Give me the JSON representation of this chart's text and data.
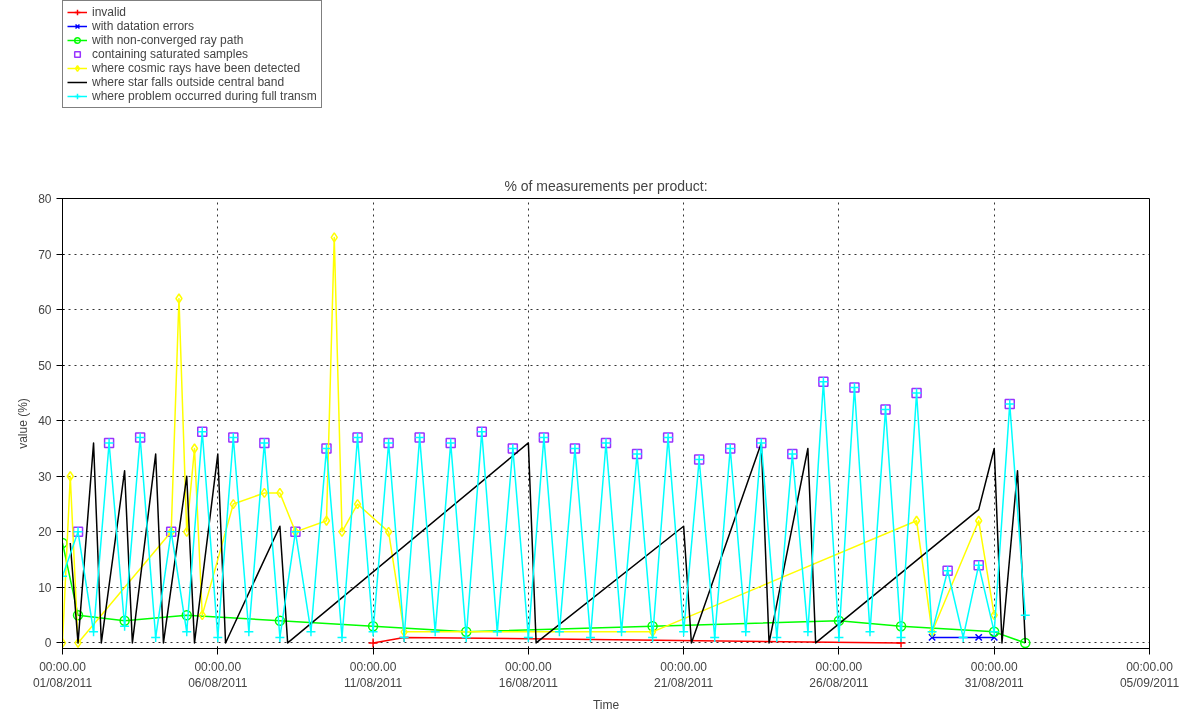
{
  "chart_data": {
    "type": "line",
    "title": "% of measurements per product:",
    "xlabel": "Time",
    "ylabel": "value (%)",
    "xlim": [
      "2011-08-01",
      "2011-09-05"
    ],
    "xticks": [
      {
        "value": "2011-08-01",
        "label": "00:00.00\n01/08/2011"
      },
      {
        "value": "2011-08-06",
        "label": "00:00.00\n06/08/2011"
      },
      {
        "value": "2011-08-11",
        "label": "00:00.00\n11/08/2011"
      },
      {
        "value": "2011-08-16",
        "label": "00:00.00\n16/08/2011"
      },
      {
        "value": "2011-08-21",
        "label": "00:00.00\n21/08/2011"
      },
      {
        "value": "2011-08-26",
        "label": "00:00.00\n26/08/2011"
      },
      {
        "value": "2011-08-31",
        "label": "00:00.00\n31/08/2011"
      },
      {
        "value": "2011-09-05",
        "label": "00:00.00\n05/09/2011"
      }
    ],
    "ylim": [
      -1,
      80
    ],
    "yticks": [
      0,
      10,
      20,
      30,
      40,
      50,
      60,
      70,
      80
    ],
    "grid": true,
    "legend": "top left",
    "line_style": "solid",
    "series": [
      {
        "name": "invalid",
        "color": "#ff0000",
        "marker": "cross",
        "x": [
          "2011-08-11T00:00",
          "2011-08-12T00:00",
          "2011-08-28T00:00"
        ],
        "values": [
          0,
          1,
          0
        ]
      },
      {
        "name": "with datation errors",
        "color": "#0000ff",
        "marker": "x",
        "x": [
          "2011-08-29T00:00",
          "2011-08-30T12:00",
          "2011-08-31T00:00"
        ],
        "values": [
          1,
          1,
          1
        ]
      },
      {
        "name": "with non-converged ray path",
        "color": "#00ff00",
        "marker": "circle",
        "x": [
          "2011-08-01T00:00",
          "2011-08-01T12:00",
          "2011-08-03T00:00",
          "2011-08-05T00:00",
          "2011-08-08T00:00",
          "2011-08-11T00:00",
          "2011-08-14T00:00",
          "2011-08-20T00:00",
          "2011-08-26T00:00",
          "2011-08-28T00:00",
          "2011-08-31T00:00",
          "2011-09-01T00:00"
        ],
        "values": [
          18,
          5,
          4,
          5,
          4,
          3,
          2,
          3,
          4,
          3,
          2,
          0
        ]
      },
      {
        "name": "containing saturated samples",
        "color": "#9933ff",
        "marker": "square",
        "type": "scatter",
        "x": [
          "2011-08-01T12:00",
          "2011-08-02T12:00",
          "2011-08-03T12:00",
          "2011-08-04T12:00",
          "2011-08-05T12:00",
          "2011-08-06T12:00",
          "2011-08-07T12:00",
          "2011-08-08T12:00",
          "2011-08-09T12:00",
          "2011-08-10T12:00",
          "2011-08-11T12:00",
          "2011-08-12T12:00",
          "2011-08-13T12:00",
          "2011-08-14T12:00",
          "2011-08-15T12:00",
          "2011-08-16T12:00",
          "2011-08-17T12:00",
          "2011-08-18T12:00",
          "2011-08-19T12:00",
          "2011-08-20T12:00",
          "2011-08-21T12:00",
          "2011-08-22T12:00",
          "2011-08-23T12:00",
          "2011-08-24T12:00",
          "2011-08-25T12:00",
          "2011-08-26T12:00",
          "2011-08-27T12:00",
          "2011-08-28T12:00",
          "2011-08-29T12:00",
          "2011-08-30T12:00",
          "2011-08-31T12:00"
        ],
        "values": [
          20,
          36,
          37,
          20,
          38,
          37,
          36,
          20,
          35,
          37,
          36,
          37,
          36,
          38,
          35,
          37,
          35,
          36,
          34,
          37,
          33,
          35,
          36,
          34,
          47,
          46,
          42,
          45,
          13,
          14,
          43
        ]
      },
      {
        "name": "where cosmic rays have been detected",
        "color": "#ffff00",
        "marker": "diamond",
        "x": [
          "2011-08-01T00:00",
          "2011-08-01T06:00",
          "2011-08-01T12:00",
          "2011-08-04T12:00",
          "2011-08-04T18:00",
          "2011-08-05T00:00",
          "2011-08-05T06:00",
          "2011-08-05T12:00",
          "2011-08-06T12:00",
          "2011-08-07T12:00",
          "2011-08-08T00:00",
          "2011-08-08T12:00",
          "2011-08-09T12:00",
          "2011-08-09T18:00",
          "2011-08-10T00:00",
          "2011-08-10T12:00",
          "2011-08-11T12:00",
          "2011-08-12T00:00",
          "2011-08-20T00:00",
          "2011-08-28T12:00",
          "2011-08-29T00:00",
          "2011-08-30T12:00",
          "2011-08-31T00:00"
        ],
        "values": [
          0,
          30,
          0,
          20,
          62,
          20,
          35,
          5,
          25,
          27,
          27,
          20,
          22,
          73,
          20,
          25,
          20,
          2,
          2,
          22,
          2,
          22,
          5
        ]
      },
      {
        "name": "where star falls outside central band",
        "color": "#000000",
        "marker": "none",
        "x": [
          "2011-08-01T06:00",
          "2011-08-01T12:00",
          "2011-08-02T00:00",
          "2011-08-02T06:00",
          "2011-08-03T00:00",
          "2011-08-03T06:00",
          "2011-08-04T00:00",
          "2011-08-04T06:00",
          "2011-08-05T00:00",
          "2011-08-05T06:00",
          "2011-08-06T00:00",
          "2011-08-06T06:00",
          "2011-08-08T00:00",
          "2011-08-08T06:00",
          "2011-08-16T00:00",
          "2011-08-16T06:00",
          "2011-08-21T00:00",
          "2011-08-21T06:00",
          "2011-08-23T12:00",
          "2011-08-23T18:00",
          "2011-08-25T00:00",
          "2011-08-25T06:00",
          "2011-08-30T12:00",
          "2011-08-31T00:00",
          "2011-08-31T06:00",
          "2011-08-31T18:00",
          "2011-09-01T00:00"
        ],
        "values": [
          18,
          0,
          36,
          0,
          31,
          0,
          34,
          0,
          30,
          0,
          34,
          0,
          21,
          0,
          36,
          0,
          21,
          0,
          36,
          0,
          35,
          0,
          24,
          35,
          0,
          31,
          0
        ]
      },
      {
        "name": "where problem occurred during full transm",
        "color": "#00ffff",
        "marker": "cross",
        "x": [
          "2011-08-01T00:00",
          "2011-08-01T12:00",
          "2011-08-02T00:00",
          "2011-08-02T12:00",
          "2011-08-03T00:00",
          "2011-08-03T12:00",
          "2011-08-04T00:00",
          "2011-08-04T12:00",
          "2011-08-05T00:00",
          "2011-08-05T12:00",
          "2011-08-06T00:00",
          "2011-08-06T12:00",
          "2011-08-07T00:00",
          "2011-08-07T12:00",
          "2011-08-08T00:00",
          "2011-08-08T12:00",
          "2011-08-09T00:00",
          "2011-08-09T12:00",
          "2011-08-10T00:00",
          "2011-08-10T12:00",
          "2011-08-11T00:00",
          "2011-08-11T12:00",
          "2011-08-12T00:00",
          "2011-08-12T12:00",
          "2011-08-13T00:00",
          "2011-08-13T12:00",
          "2011-08-14T00:00",
          "2011-08-14T12:00",
          "2011-08-15T00:00",
          "2011-08-15T12:00",
          "2011-08-16T00:00",
          "2011-08-16T12:00",
          "2011-08-17T00:00",
          "2011-08-17T12:00",
          "2011-08-18T00:00",
          "2011-08-18T12:00",
          "2011-08-19T00:00",
          "2011-08-19T12:00",
          "2011-08-20T00:00",
          "2011-08-20T12:00",
          "2011-08-21T00:00",
          "2011-08-21T12:00",
          "2011-08-22T00:00",
          "2011-08-22T12:00",
          "2011-08-23T00:00",
          "2011-08-23T12:00",
          "2011-08-24T00:00",
          "2011-08-24T12:00",
          "2011-08-25T00:00",
          "2011-08-25T12:00",
          "2011-08-26T00:00",
          "2011-08-26T12:00",
          "2011-08-27T00:00",
          "2011-08-27T12:00",
          "2011-08-28T00:00",
          "2011-08-28T12:00",
          "2011-08-29T00:00",
          "2011-08-29T12:00",
          "2011-08-30T00:00",
          "2011-08-30T12:00",
          "2011-08-31T00:00",
          "2011-08-31T12:00",
          "2011-09-01T00:00"
        ],
        "values": [
          12,
          20,
          2,
          36,
          3,
          37,
          1,
          20,
          2,
          38,
          1,
          37,
          2,
          36,
          1,
          20,
          2,
          35,
          1,
          37,
          2,
          36,
          1,
          37,
          2,
          36,
          1,
          38,
          2,
          35,
          1,
          37,
          2,
          35,
          1,
          36,
          2,
          34,
          1,
          37,
          2,
          33,
          1,
          35,
          2,
          36,
          1,
          34,
          2,
          47,
          1,
          46,
          2,
          42,
          1,
          45,
          2,
          13,
          1,
          14,
          2,
          43,
          5
        ]
      }
    ]
  }
}
